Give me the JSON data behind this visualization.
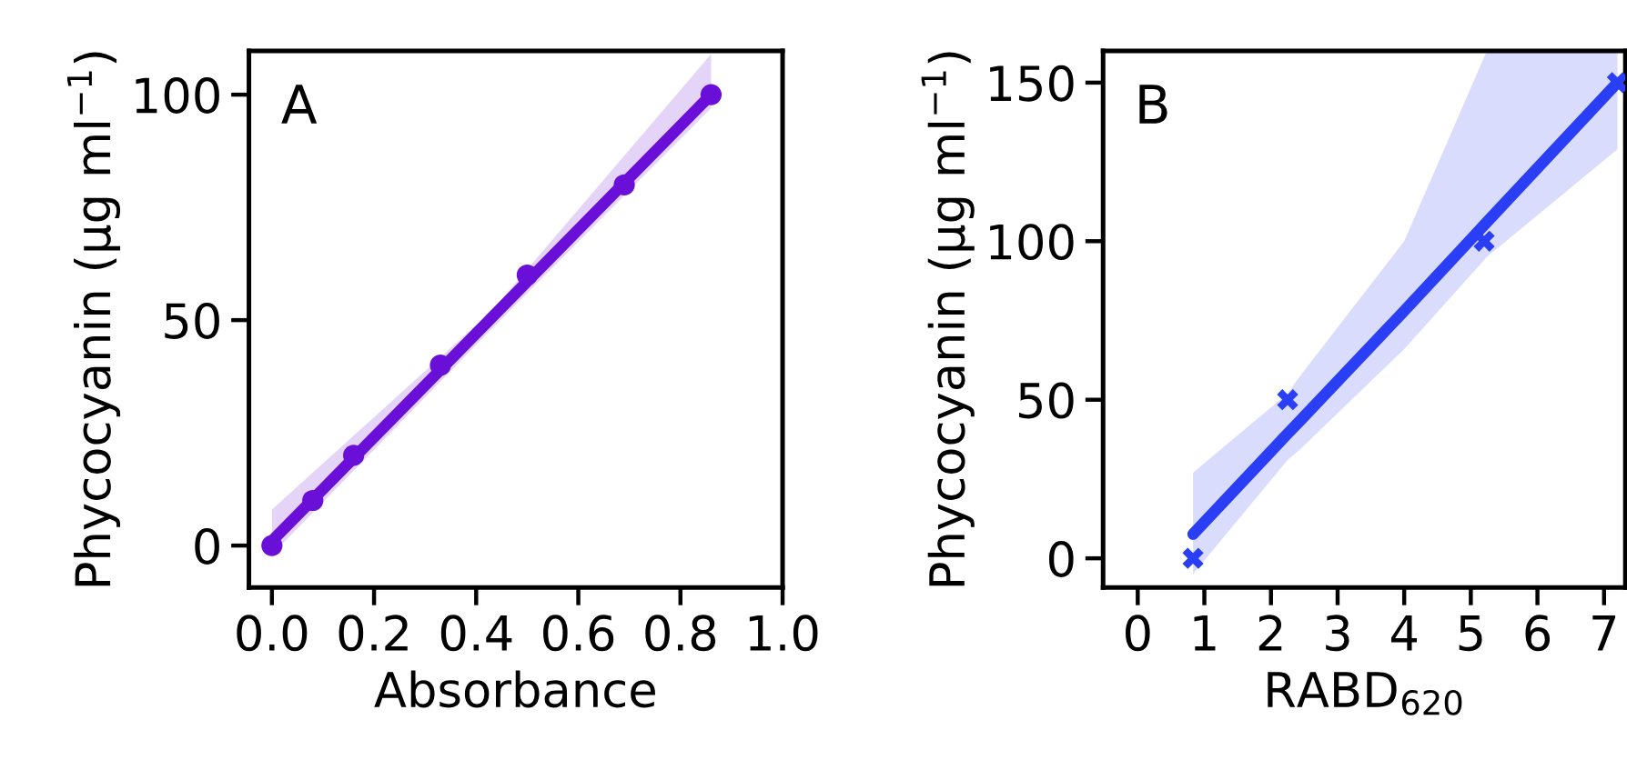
{
  "chart_data": [
    {
      "type": "scatter",
      "xlabel": "Absorbance",
      "ylabel": "Phycocyanin (μg ml$^{−1}$)",
      "annotations": [
        "A"
      ],
      "grid": false,
      "legend": false,
      "xlim": [
        -0.045,
        1.0
      ],
      "ylim": [
        -9.3,
        109.7
      ],
      "xticks": [
        {
          "value": 0,
          "label": "0.0"
        },
        0.2,
        0.4,
        0.6,
        0.8,
        {
          "value": 1,
          "label": "1.0"
        }
      ],
      "yticks": [
        0,
        50,
        100
      ],
      "series": [
        {
          "marker": "circle",
          "color": "#6a0fd8",
          "x": [
            0,
            0.08,
            0.16,
            0.33,
            0.5,
            0.69,
            0.86
          ],
          "values": [
            0,
            10,
            20,
            40,
            60,
            80,
            100
          ]
        },
        {
          "type": "line",
          "color": "#6a0fd8",
          "x": [
            0,
            0.43,
            0.86
          ],
          "values": [
            1,
            50.5,
            100
          ],
          "lower": [
            -2,
            48,
            97
          ],
          "upper": [
            8,
            52,
            109
          ]
        }
      ]
    },
    {
      "type": "scatter",
      "xlabel": "RABD$_{620}$",
      "ylabel": "Phycocyanin (μg ml$^{−1}$)",
      "annotations": [
        "B"
      ],
      "grid": false,
      "legend": false,
      "xlim": [
        -0.52,
        7.32
      ],
      "ylim": [
        -9.2,
        160
      ],
      "xticks": [
        0,
        1,
        2,
        3,
        4,
        5,
        6,
        7
      ],
      "yticks": [
        0,
        50,
        100,
        150
      ],
      "series": [
        {
          "marker": "cross",
          "color": "#2a3ef5",
          "x": [
            0.83,
            2.25,
            5.2,
            7.2
          ],
          "values": [
            0,
            50,
            100,
            150
          ]
        },
        {
          "type": "line",
          "color": "#2a3ef5",
          "x": [
            0.83,
            2.25,
            2.42,
            4,
            5.24,
            7.2
          ],
          "values": [
            7.6,
            39.3,
            43,
            78,
            106,
            150
          ],
          "lower": [
            -5,
            31,
            34,
            66,
            95,
            129
          ],
          "upper": [
            27,
            52,
            57,
            100,
            160,
            160
          ]
        }
      ]
    }
  ]
}
